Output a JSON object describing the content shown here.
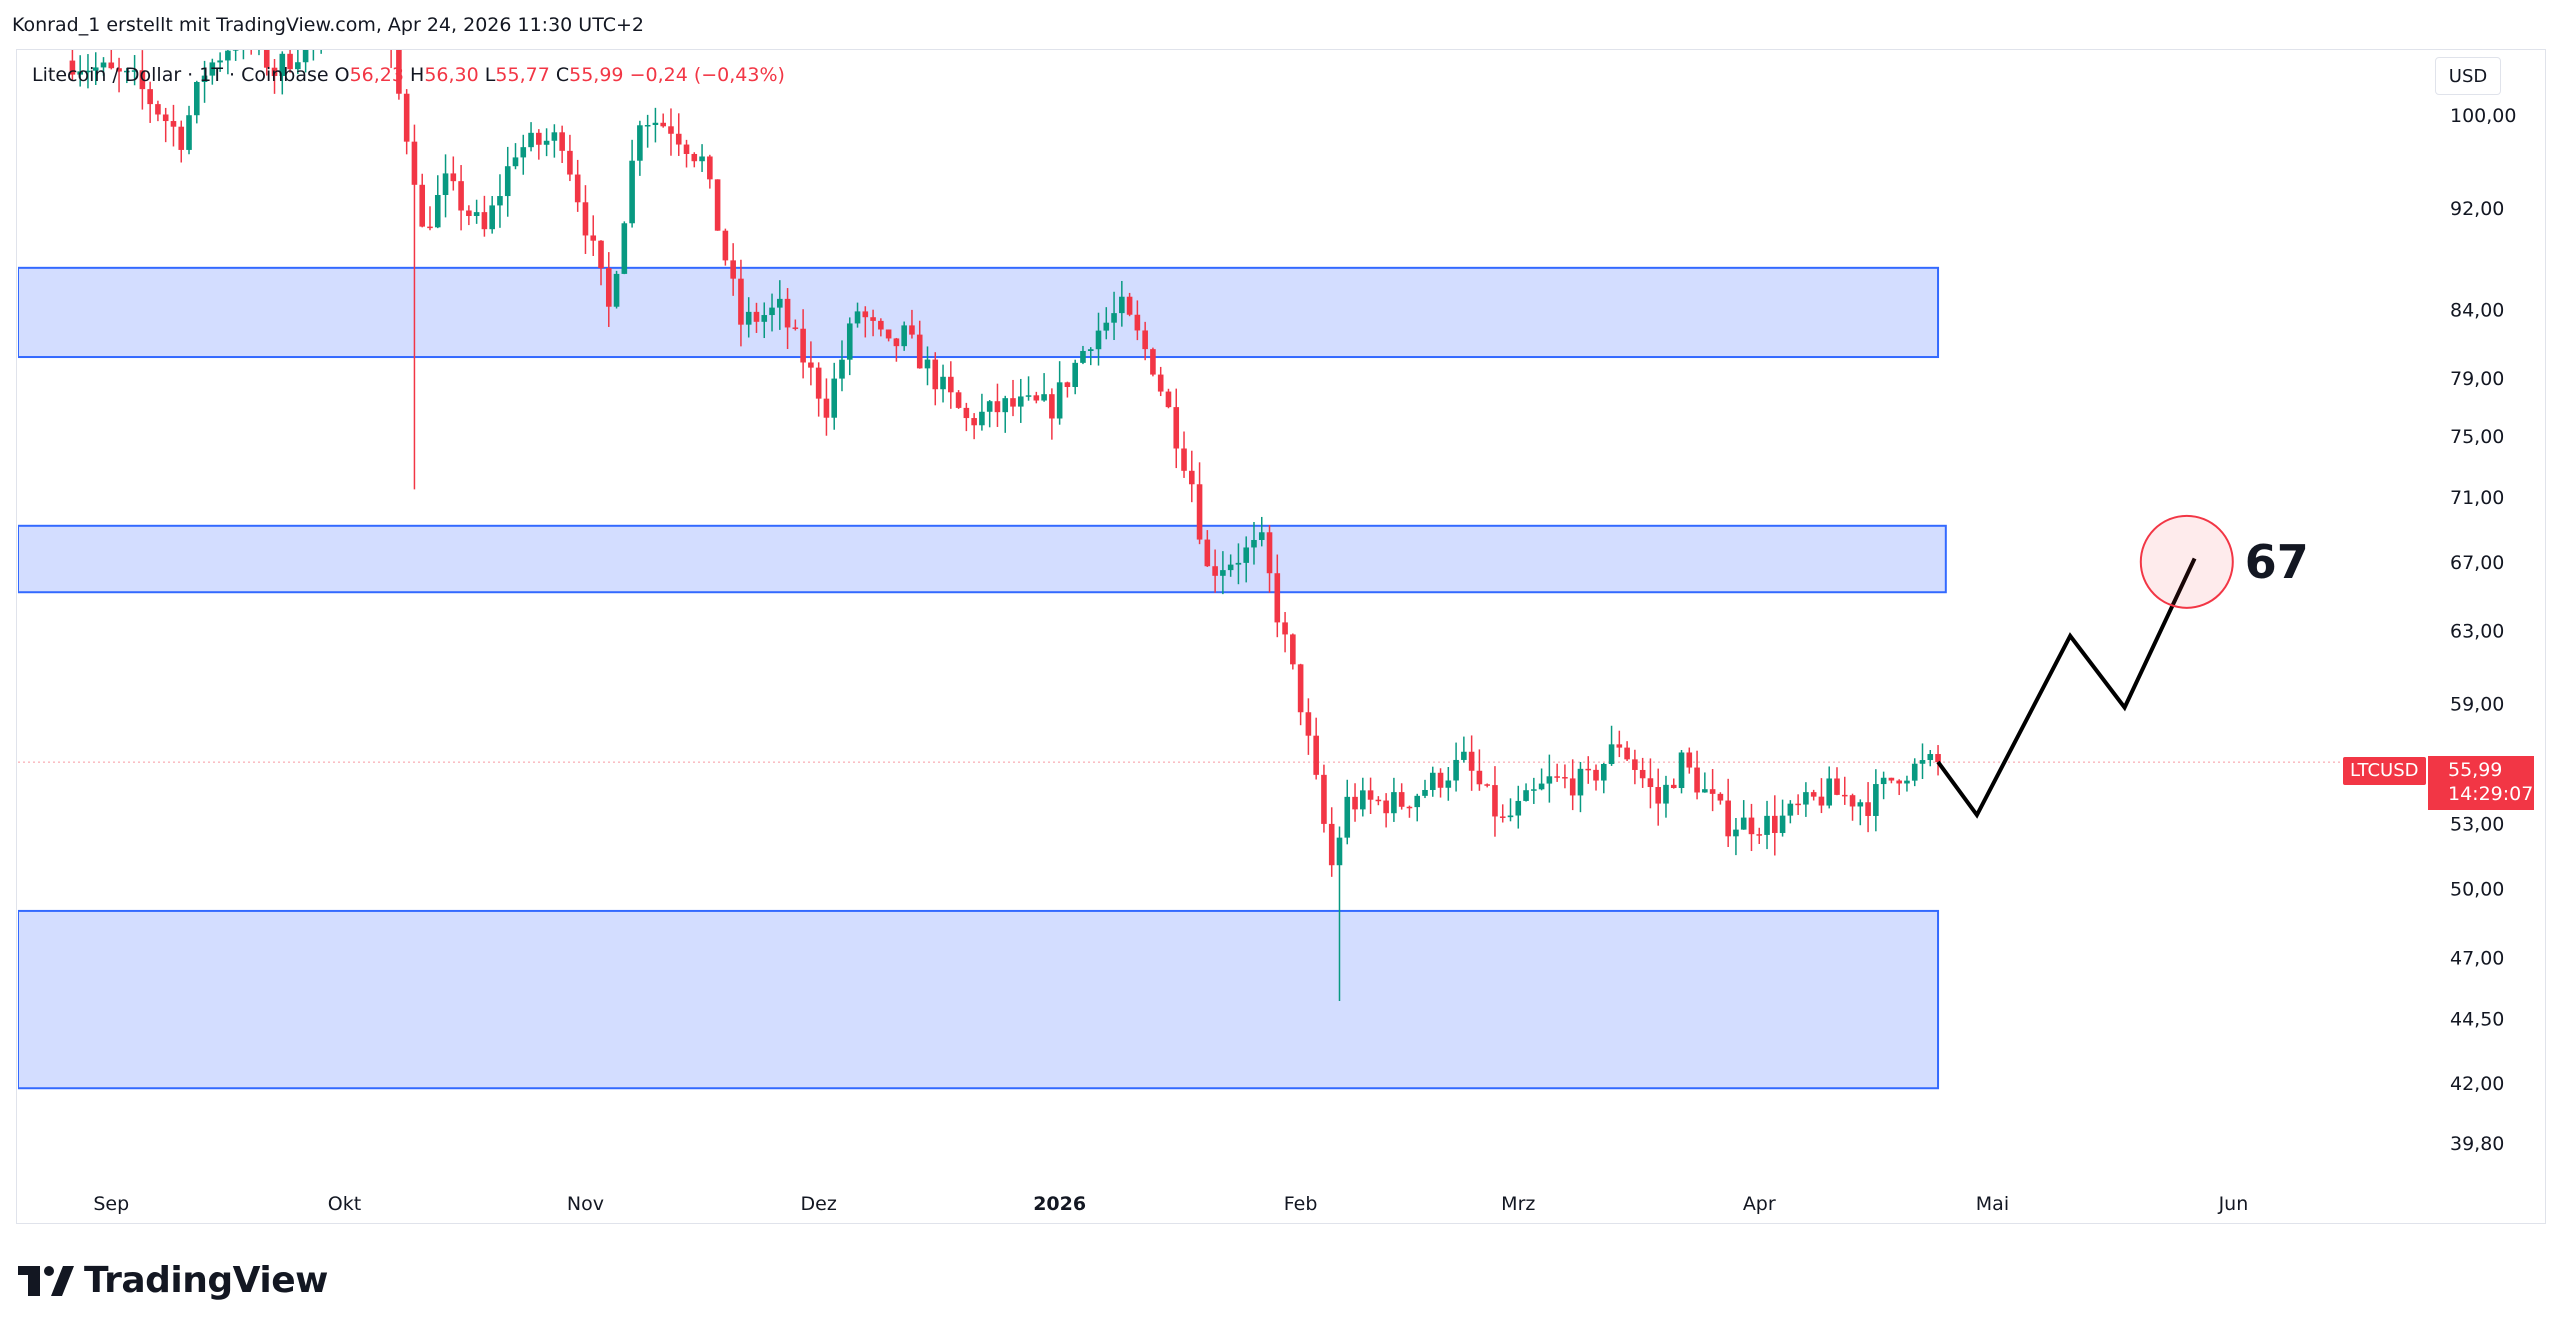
{
  "header": {
    "credit": "Konrad_1 erstellt mit TradingView.com, Apr 24, 2026 11:30 UTC+2"
  },
  "legend": {
    "symbol": "Litecoin / Dollar · 1T · Coinbase",
    "o_label": "O",
    "o_value": "56,23",
    "h_label": "H",
    "h_value": "56,30",
    "l_label": "L",
    "l_value": "55,77",
    "c_label": "C",
    "c_value": "55,99",
    "change": "−0,24 (−0,43%)"
  },
  "currency": "USD",
  "price_tag": {
    "symbol": "LTCUSD",
    "price": "55,99",
    "countdown": "14:29:07"
  },
  "brand": {
    "name": "TradingView"
  },
  "colors": {
    "up": "#089981",
    "down": "#f23645",
    "zone_fill": "#d1dcff",
    "zone_border": "#2962ff",
    "projection": "#000000",
    "target_circle": "#f23645"
  },
  "chart_data": {
    "type": "candlestick",
    "symbol": "LTCUSD",
    "timeframe": "1T",
    "y_axis": {
      "scale": "log",
      "range": [
        38.5,
        106
      ],
      "ticks": [
        "100,00",
        "92,00",
        "84,00",
        "79,00",
        "75,00",
        "71,00",
        "67,00",
        "63,00",
        "59,00",
        "55,99",
        "53,00",
        "50,00",
        "47,00",
        "44,50",
        "42,00",
        "39,80"
      ],
      "tick_values": [
        100,
        92,
        84,
        79,
        75,
        71,
        67,
        63,
        59,
        55.99,
        53,
        50,
        47,
        44.5,
        42,
        39.8
      ]
    },
    "x_axis": {
      "labels": [
        "Sep",
        "Okt",
        "Nov",
        "Dez",
        "2026",
        "Feb",
        "Mrz",
        "Apr",
        "Mai",
        "Jun"
      ],
      "label_dates": [
        "2025-09-01",
        "2025-10-01",
        "2025-11-01",
        "2025-12-01",
        "2026-01-01",
        "2026-02-01",
        "2026-03-01",
        "2026-04-01",
        "2026-05-01",
        "2026-06-01"
      ],
      "range": [
        "2025-08-20",
        "2026-06-25"
      ]
    },
    "zones": [
      {
        "from": 80.5,
        "to": 87.2,
        "start": "2025-08-20",
        "end": "2026-04-24"
      },
      {
        "from": 65.2,
        "to": 69.2,
        "start": "2025-08-20",
        "end": "2026-04-25"
      },
      {
        "from": 41.8,
        "to": 49.0,
        "start": "2025-08-20",
        "end": "2026-04-24"
      }
    ],
    "projection": [
      [
        "2026-04-24",
        56.0
      ],
      [
        "2026-04-29",
        53.4
      ],
      [
        "2026-05-11",
        62.7
      ],
      [
        "2026-05-18",
        58.8
      ],
      [
        "2026-05-27",
        67.2
      ]
    ],
    "target": {
      "label": "67",
      "date": "2026-05-26",
      "value": 67.0
    },
    "last_price": 55.99,
    "anchors": [
      [
        "2025-08-27",
        105
      ],
      [
        "2025-09-04",
        103
      ],
      [
        "2025-09-10",
        98
      ],
      [
        "2025-09-13",
        104
      ],
      [
        "2025-09-18",
        108
      ],
      [
        "2025-09-22",
        104
      ],
      [
        "2025-10-01",
        110
      ],
      [
        "2025-10-06",
        109
      ],
      [
        "2025-10-10",
        95
      ],
      [
        "2025-10-11",
        90
      ],
      [
        "2025-10-14",
        94
      ],
      [
        "2025-10-19",
        90
      ],
      [
        "2025-10-23",
        97
      ],
      [
        "2025-10-29",
        98
      ],
      [
        "2025-11-04",
        84
      ],
      [
        "2025-11-08",
        100
      ],
      [
        "2025-11-12",
        99
      ],
      [
        "2025-11-16",
        96
      ],
      [
        "2025-11-21",
        83
      ],
      [
        "2025-11-26",
        84
      ],
      [
        "2025-12-02",
        77
      ],
      [
        "2025-12-06",
        84
      ],
      [
        "2025-12-10",
        81
      ],
      [
        "2025-12-12",
        82
      ],
      [
        "2025-12-20",
        76
      ],
      [
        "2025-12-25",
        77
      ],
      [
        "2025-12-31",
        77
      ],
      [
        "2026-01-05",
        82
      ],
      [
        "2026-01-09",
        84
      ],
      [
        "2026-01-13",
        80
      ],
      [
        "2026-01-18",
        72
      ],
      [
        "2026-01-20",
        66.5
      ],
      [
        "2026-01-27",
        68
      ],
      [
        "2026-01-29",
        64
      ],
      [
        "2026-02-01",
        59
      ],
      [
        "2026-02-05",
        51
      ],
      [
        "2026-02-07",
        54
      ],
      [
        "2026-02-14",
        54
      ],
      [
        "2026-02-22",
        56
      ],
      [
        "2026-02-27",
        53
      ],
      [
        "2026-03-05",
        55
      ],
      [
        "2026-03-10",
        55
      ],
      [
        "2026-03-14",
        57
      ],
      [
        "2026-03-19",
        54
      ],
      [
        "2026-03-22",
        56
      ],
      [
        "2026-03-28",
        53
      ],
      [
        "2026-04-03",
        53
      ],
      [
        "2026-04-10",
        54.5
      ],
      [
        "2026-04-15",
        54
      ],
      [
        "2026-04-19",
        55.5
      ],
      [
        "2026-04-24",
        55.99
      ]
    ],
    "spikes": [
      {
        "date": "2025-10-10",
        "low": 71.5
      },
      {
        "date": "2026-02-06",
        "low": 45.2
      }
    ]
  }
}
